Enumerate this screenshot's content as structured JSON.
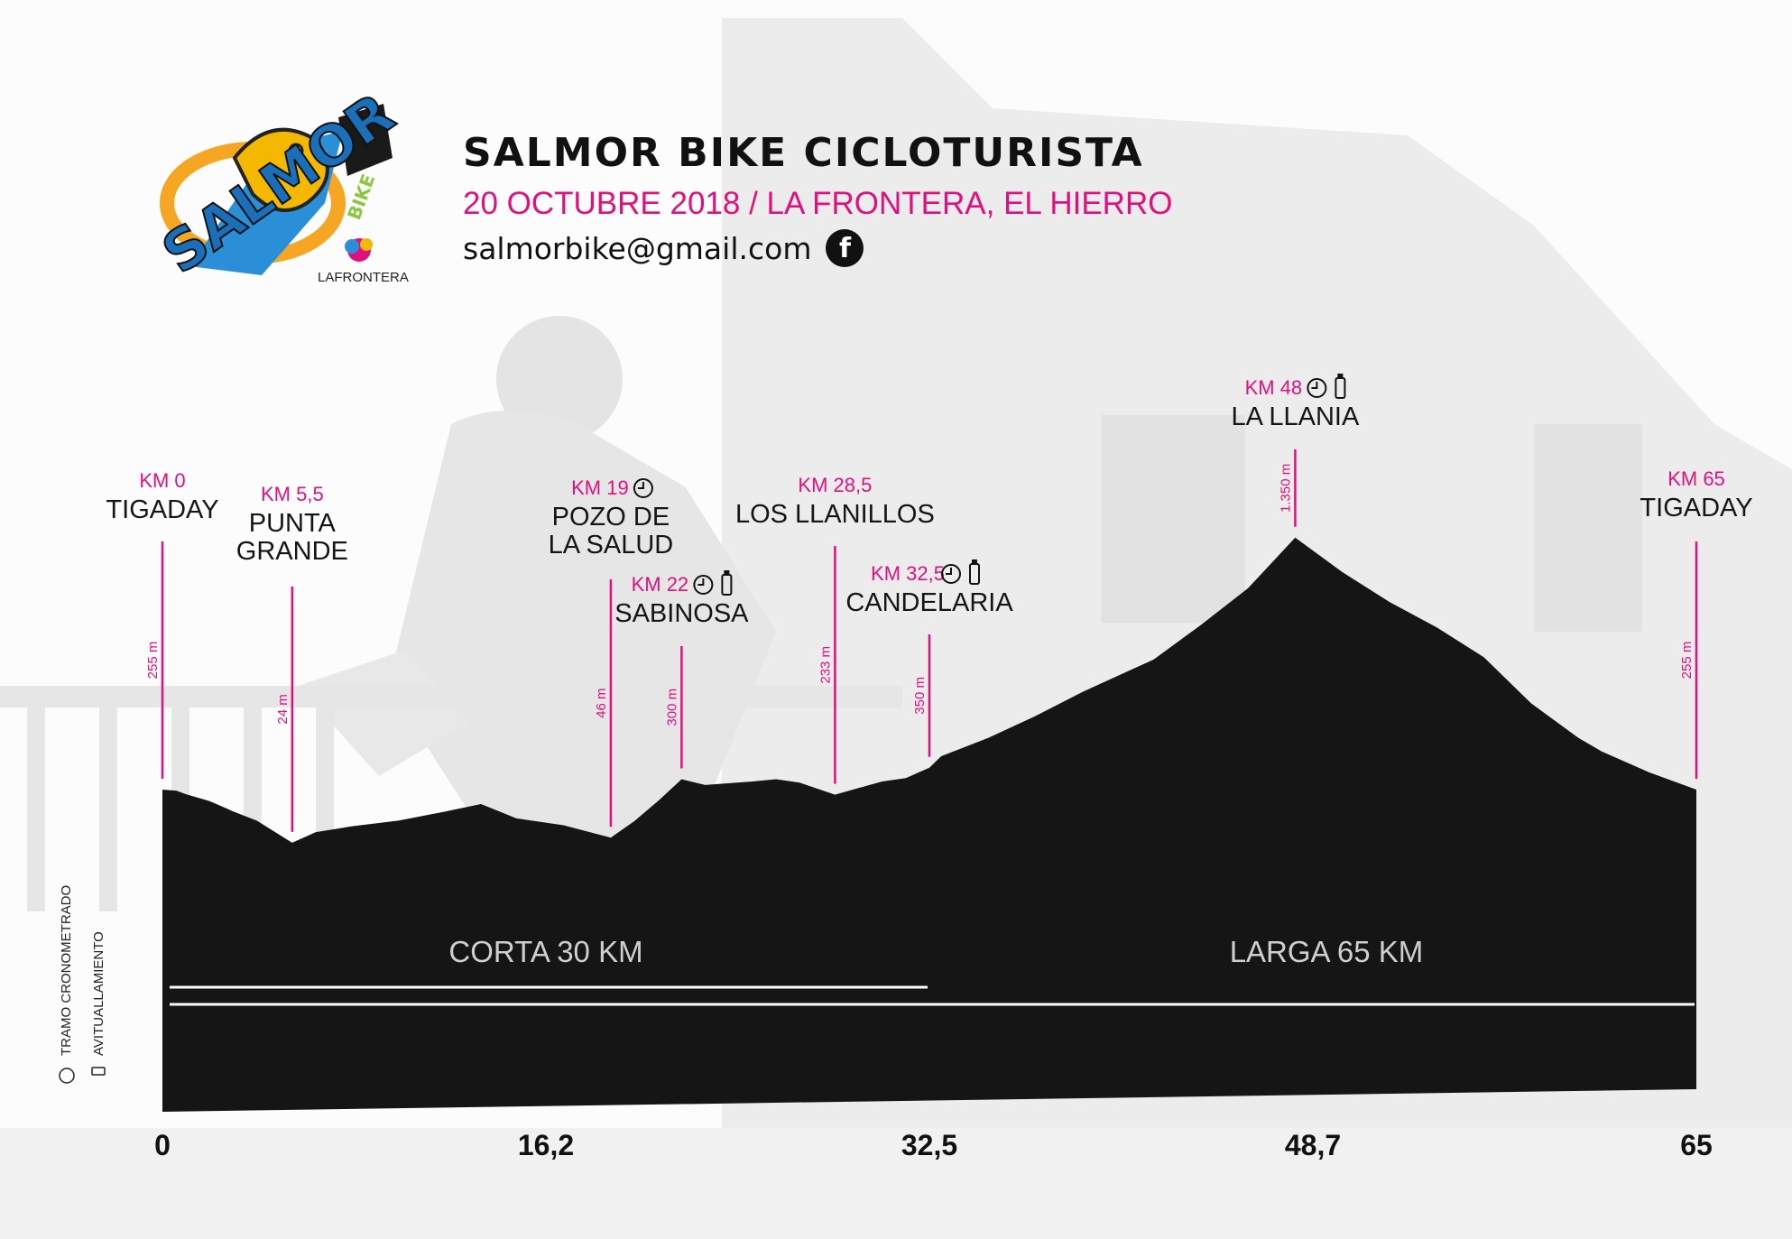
{
  "header": {
    "title": "SALMOR BIKE CICLOTURISTA",
    "subtitle": "20 OCTUBRE 2018 / LA FRONTERA, EL HIERRO",
    "email": "salmorbike@gmail.com",
    "facebook_glyph": "f",
    "facebook_icon": "facebook-icon"
  },
  "logo": {
    "text": "SALMOR",
    "bike_text": "BIKE",
    "sponsor": "LAFRONTERA"
  },
  "colors": {
    "accent": "#e0117f",
    "profile_fill": "#151515",
    "text": "#111111"
  },
  "chart_data": {
    "type": "area",
    "title": "SALMOR BIKE CICLOTURISTA",
    "xlabel": "",
    "ylabel": "",
    "xlim": [
      0,
      65
    ],
    "x_ticks": [
      "0",
      "16,2",
      "32,5",
      "48,7",
      "65"
    ],
    "x_tick_values": [
      0,
      16.25,
      32.5,
      48.75,
      65
    ],
    "profile": {
      "x": [
        0,
        0.6,
        1,
        2,
        3,
        4,
        5.5,
        6.5,
        8,
        10,
        12,
        13.5,
        15,
        17,
        19,
        20,
        21,
        22,
        23,
        25,
        26,
        27,
        28.5,
        29.5,
        30.5,
        31.5,
        32.5,
        33,
        35,
        37,
        39,
        42,
        44,
        46,
        48,
        50,
        52,
        54,
        56,
        58,
        60,
        61,
        63,
        65
      ],
      "y": [
        255,
        250,
        235,
        205,
        160,
        120,
        24,
        70,
        95,
        120,
        160,
        192,
        130,
        100,
        46,
        118,
        205,
        300,
        275,
        290,
        300,
        285,
        233,
        262,
        290,
        305,
        350,
        400,
        480,
        575,
        680,
        820,
        970,
        1130,
        1350,
        1200,
        1070,
        960,
        830,
        630,
        480,
        420,
        330,
        255
      ]
    },
    "route_lines": [
      {
        "label": "CORTA 30 KM",
        "x_end": 32.5
      },
      {
        "label": "LARGA 65 KM",
        "x_end": 65
      }
    ],
    "points": [
      {
        "km_label": "KM 0",
        "km": 0,
        "name": [
          "TIGADAY"
        ],
        "elev": "255 m",
        "icons": []
      },
      {
        "km_label": "KM 5,5",
        "km": 5.5,
        "name": [
          "PUNTA",
          "GRANDE"
        ],
        "elev": "24 m",
        "icons": []
      },
      {
        "km_label": "KM 19",
        "km": 19,
        "name": [
          "POZO DE",
          "LA SALUD"
        ],
        "elev": "46 m",
        "icons": [
          "clock-icon"
        ]
      },
      {
        "km_label": "KM 22",
        "km": 22,
        "name": [
          "SABINOSA"
        ],
        "elev": "300 m",
        "icons": [
          "clock-icon",
          "bottle-icon"
        ]
      },
      {
        "km_label": "KM 28,5",
        "km": 28.5,
        "name": [
          "LOS LLANILLOS"
        ],
        "elev": "233 m",
        "icons": []
      },
      {
        "km_label": "KM 32,5",
        "km": 32.5,
        "name": [
          "CANDELARIA"
        ],
        "elev": "350 m",
        "icons": [
          "clock-icon",
          "bottle-icon"
        ]
      },
      {
        "km_label": "KM 48",
        "km": 48,
        "name": [
          "LA LLANIA"
        ],
        "elev": "1.350 m",
        "icons": [
          "clock-icon",
          "bottle-icon"
        ]
      },
      {
        "km_label": "KM 65",
        "km": 65,
        "name": [
          "TIGADAY"
        ],
        "elev": "255 m",
        "icons": []
      }
    ],
    "legend": [
      {
        "icon": "clock-icon",
        "label": "TRAMO CRONOMETRADO"
      },
      {
        "icon": "bottle-icon",
        "label": "AVITUALLAMIENTO"
      }
    ]
  }
}
